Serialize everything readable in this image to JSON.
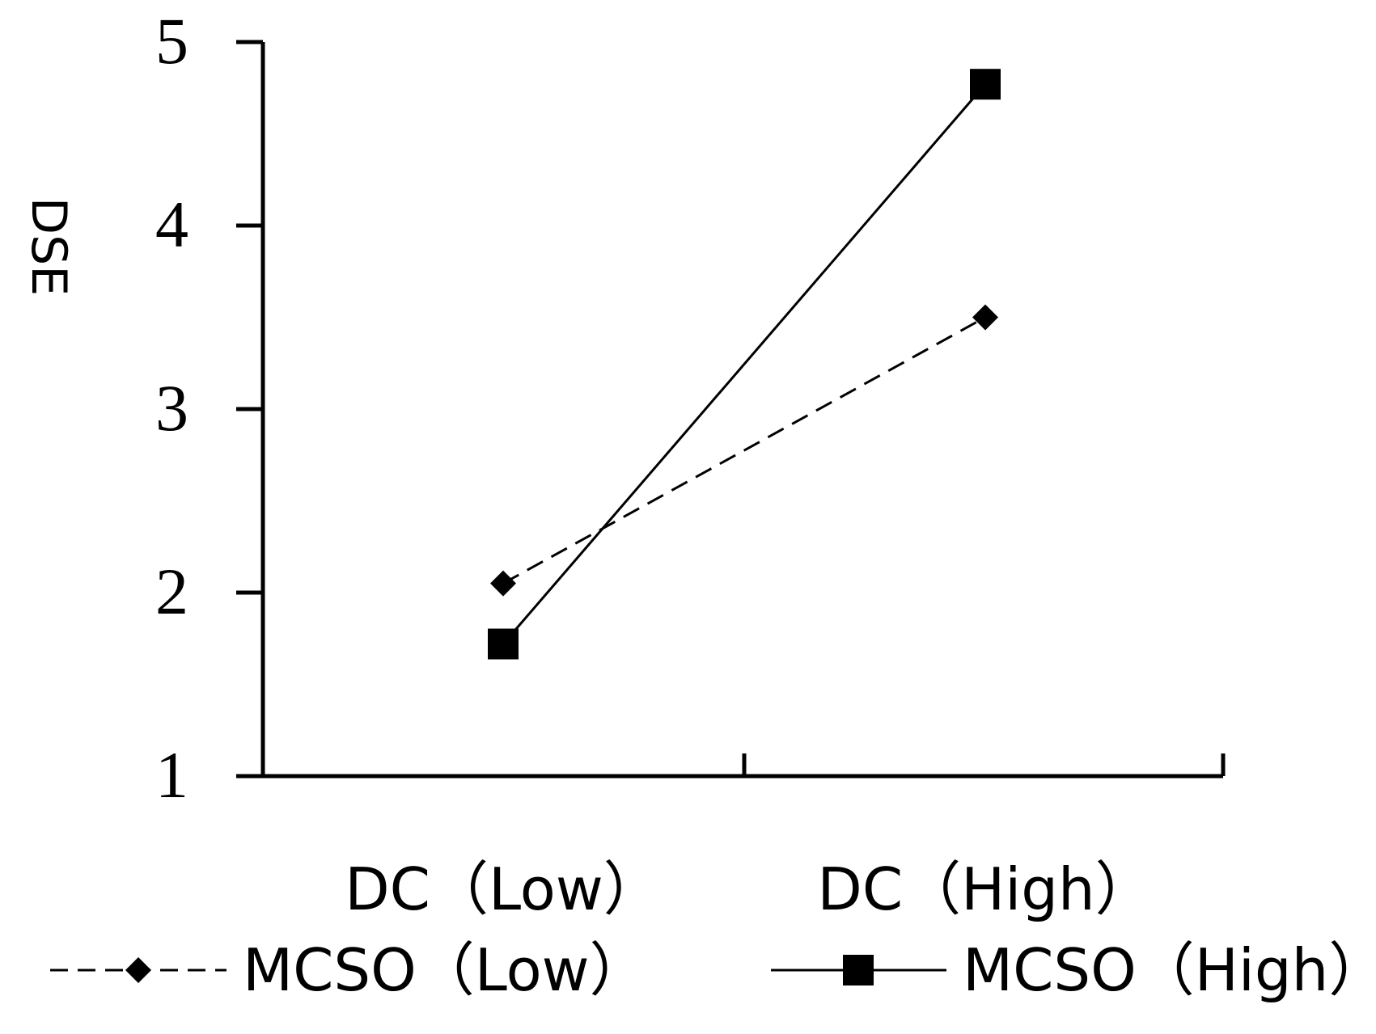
{
  "chart_data": {
    "type": "line",
    "title": "",
    "xlabel": "",
    "ylabel": "DSE",
    "ylim": [
      1,
      5
    ],
    "yticks": [
      1,
      2,
      3,
      4,
      5
    ],
    "categories": [
      "DC（Low）",
      "DC（High）"
    ],
    "grid": false,
    "legend_position": "bottom",
    "series": [
      {
        "name": "MCSO（Low）",
        "values": [
          2.05,
          3.5
        ],
        "line_style": "dashed",
        "marker": "diamond",
        "color": "#000000"
      },
      {
        "name": "MCSO（High）",
        "values": [
          1.72,
          4.77
        ],
        "line_style": "solid",
        "marker": "square",
        "color": "#000000"
      }
    ]
  }
}
